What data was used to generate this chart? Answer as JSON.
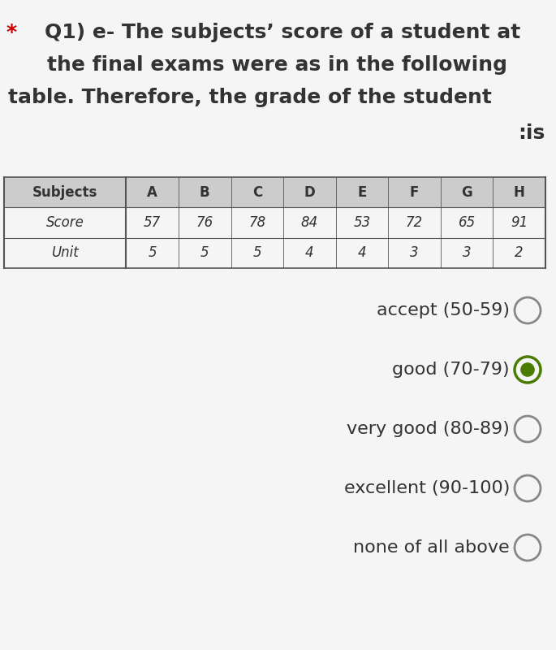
{
  "title_lines": [
    "Q1) e- The subjects’ score of a student at",
    "the final exams were as in the following",
    "table. Therefore, the grade of the student",
    ":is"
  ],
  "star_text": "*",
  "star_color": "#cc0000",
  "table_headers": [
    "Subjects",
    "A",
    "B",
    "C",
    "D",
    "E",
    "F",
    "G",
    "H"
  ],
  "table_row1_label": "Score",
  "table_row1_values": [
    "57",
    "76",
    "78",
    "84",
    "53",
    "72",
    "65",
    "91"
  ],
  "table_row2_label": "Unit",
  "table_row2_values": [
    "5",
    "5",
    "5",
    "4",
    "4",
    "3",
    "3",
    "2"
  ],
  "options": [
    "accept (50-59)",
    "good (70-79)",
    "very good (80-89)",
    "excellent (90-100)",
    "none of all above"
  ],
  "selected_option": 1,
  "radio_unselected_color": "#888888",
  "radio_selected_outer_color": "#4a7c00",
  "radio_selected_inner_color": "#4a7c00",
  "text_color": "#333333",
  "background_color": "#f5f5f5",
  "table_header_bg": "#cccccc",
  "table_border_color": "#555555"
}
